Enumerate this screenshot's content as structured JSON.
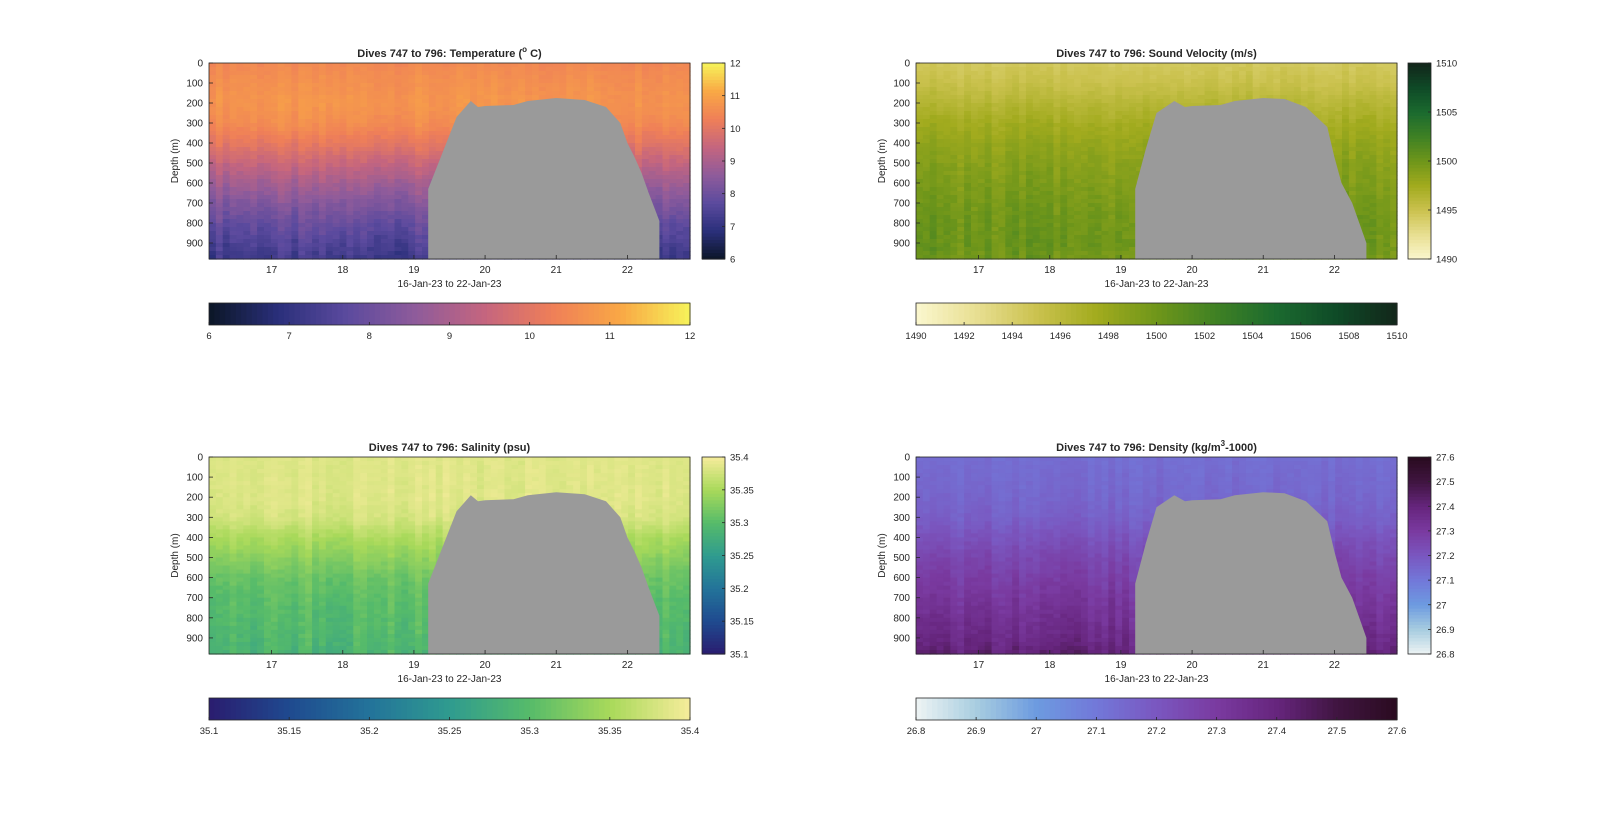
{
  "chart_data": [
    {
      "type": "heatmap",
      "title": "Dives 747 to 796: Temperature (° C)",
      "title_main": "Dives 747 to 796: Temperature (",
      "title_sup": "o",
      "title_tail": " C)",
      "xlabel": "16-Jan-23 to 22-Jan-23",
      "ylabel": "Depth (m)",
      "x_ticks": [
        "17",
        "18",
        "19",
        "20",
        "21",
        "22"
      ],
      "xlim": [
        16.12,
        22.88
      ],
      "y_ticks": [
        "0",
        "100",
        "200",
        "300",
        "400",
        "500",
        "600",
        "700",
        "800",
        "900"
      ],
      "ylim": [
        0,
        980
      ],
      "colorbar_range": [
        6,
        12
      ],
      "colorbar_ticks": [
        "6",
        "7",
        "8",
        "9",
        "10",
        "11",
        "12"
      ],
      "horizontal_colorbar_ticks": [
        "6",
        "7",
        "8",
        "9",
        "10",
        "11",
        "12"
      ],
      "colormap": [
        "#0b1626",
        "#2a2f7a",
        "#5b4a9e",
        "#8e5b9b",
        "#c4657f",
        "#ef7f58",
        "#f9a845",
        "#f6f35a"
      ],
      "profile": {
        "depths": [
          0,
          100,
          200,
          300,
          400,
          500,
          600,
          700,
          800,
          900,
          980
        ],
        "values": [
          10.5,
          10.65,
          10.75,
          10.6,
          10.1,
          9.5,
          8.9,
          8.4,
          7.9,
          7.5,
          7.2
        ]
      },
      "no_data_color": "#9a9a9a",
      "no_data_region": {
        "x": [
          19.2,
          19.2,
          19.6,
          19.8,
          19.9,
          20.0,
          20.4,
          20.6,
          21.0,
          21.4,
          21.7,
          21.9,
          22.0,
          22.1,
          22.2,
          22.3,
          22.45,
          22.45
        ],
        "depth": [
          980,
          630,
          270,
          190,
          220,
          215,
          210,
          190,
          175,
          185,
          220,
          300,
          400,
          470,
          550,
          650,
          790,
          980
        ]
      }
    },
    {
      "type": "heatmap",
      "title": "Dives 747 to 796: Sound Velocity (m/s)",
      "title_main": "Dives 747 to 796: Sound Velocity (m/s)",
      "title_sup": "",
      "title_tail": "",
      "xlabel": "16-Jan-23 to 22-Jan-23",
      "ylabel": "Depth (m)",
      "x_ticks": [
        "17",
        "18",
        "19",
        "20",
        "21",
        "22"
      ],
      "xlim": [
        16.12,
        22.88
      ],
      "y_ticks": [
        "0",
        "100",
        "200",
        "300",
        "400",
        "500",
        "600",
        "700",
        "800",
        "900"
      ],
      "ylim": [
        0,
        980
      ],
      "colorbar_range": [
        1490,
        1510
      ],
      "colorbar_ticks": [
        "1490",
        "1495",
        "1500",
        "1505",
        "1510"
      ],
      "horizontal_colorbar_ticks": [
        "1490",
        "1492",
        "1494",
        "1496",
        "1498",
        "1500",
        "1502",
        "1504",
        "1506",
        "1508",
        "1510"
      ],
      "colormap": [
        "#fbf7cf",
        "#e8df92",
        "#cbc24f",
        "#a2ab1e",
        "#6f961a",
        "#3f8124",
        "#1b6a2f",
        "#0f4a27",
        "#12261a"
      ],
      "profile": {
        "depths": [
          0,
          100,
          200,
          300,
          400,
          500,
          600,
          700,
          800,
          900,
          980
        ],
        "values": [
          1494.5,
          1495.2,
          1496.3,
          1497.4,
          1498.2,
          1498.8,
          1499.3,
          1499.7,
          1500.1,
          1500.2,
          1500.0
        ]
      },
      "no_data_color": "#9a9a9a",
      "no_data_region": {
        "x": [
          19.2,
          19.2,
          19.35,
          19.5,
          19.75,
          19.9,
          20.0,
          20.4,
          20.6,
          21.0,
          21.3,
          21.6,
          21.9,
          22.0,
          22.1,
          22.25,
          22.35,
          22.45,
          22.45
        ],
        "depth": [
          980,
          630,
          430,
          250,
          190,
          220,
          215,
          210,
          190,
          175,
          180,
          220,
          320,
          470,
          600,
          700,
          800,
          900,
          980
        ]
      }
    },
    {
      "type": "heatmap",
      "title": "Dives 747 to 796: Salinity (psu)",
      "title_main": "Dives 747 to 796: Salinity (psu)",
      "title_sup": "",
      "title_tail": "",
      "xlabel": "16-Jan-23 to 22-Jan-23",
      "ylabel": "Depth (m)",
      "x_ticks": [
        "17",
        "18",
        "19",
        "20",
        "21",
        "22"
      ],
      "xlim": [
        16.12,
        22.88
      ],
      "y_ticks": [
        "0",
        "100",
        "200",
        "300",
        "400",
        "500",
        "600",
        "700",
        "800",
        "900"
      ],
      "ylim": [
        0,
        980
      ],
      "colorbar_range": [
        35.1,
        35.4
      ],
      "colorbar_ticks": [
        "35.1",
        "35.15",
        "35.2",
        "35.25",
        "35.3",
        "35.35",
        "35.4"
      ],
      "horizontal_colorbar_ticks": [
        "35.1",
        "35.15",
        "35.2",
        "35.25",
        "35.3",
        "35.35",
        "35.4"
      ],
      "colormap": [
        "#2a1c6f",
        "#1f4a8f",
        "#23739a",
        "#2f9b8f",
        "#56bb6a",
        "#a8d95a",
        "#f6ec9b"
      ],
      "profile": {
        "depths": [
          0,
          100,
          200,
          300,
          400,
          500,
          600,
          700,
          800,
          900,
          980
        ],
        "values": [
          35.385,
          35.385,
          35.385,
          35.38,
          35.355,
          35.335,
          35.315,
          35.305,
          35.3,
          35.295,
          35.29
        ]
      },
      "no_data_color": "#9a9a9a",
      "no_data_region": {
        "x": [
          19.2,
          19.2,
          19.6,
          19.8,
          19.9,
          20.0,
          20.4,
          20.6,
          21.0,
          21.4,
          21.7,
          21.9,
          22.0,
          22.1,
          22.2,
          22.3,
          22.45,
          22.45
        ],
        "depth": [
          980,
          630,
          270,
          190,
          220,
          215,
          210,
          190,
          175,
          185,
          220,
          300,
          400,
          470,
          550,
          650,
          790,
          980
        ]
      }
    },
    {
      "type": "heatmap",
      "title": "Dives 747 to 796: Density (kg/m³-1000)",
      "title_main": "Dives 747 to 796: Density (kg/m",
      "title_sup": "3",
      "title_tail": "-1000)",
      "xlabel": "16-Jan-23 to 22-Jan-23",
      "ylabel": "Depth (m)",
      "x_ticks": [
        "17",
        "18",
        "19",
        "20",
        "21",
        "22"
      ],
      "xlim": [
        16.12,
        22.88
      ],
      "y_ticks": [
        "0",
        "100",
        "200",
        "300",
        "400",
        "500",
        "600",
        "700",
        "800",
        "900"
      ],
      "ylim": [
        0,
        980
      ],
      "colorbar_range": [
        26.8,
        27.6
      ],
      "colorbar_ticks": [
        "26.8",
        "26.9",
        "27",
        "27.1",
        "27.2",
        "27.3",
        "27.4",
        "27.5",
        "27.6"
      ],
      "horizontal_colorbar_ticks": [
        "26.8",
        "26.9",
        "27",
        "27.1",
        "27.2",
        "27.3",
        "27.4",
        "27.5",
        "27.6"
      ],
      "colormap": [
        "#eef4f4",
        "#a8cde0",
        "#6d9be0",
        "#7278d9",
        "#7a57c0",
        "#7a3aa0",
        "#66257d",
        "#401541",
        "#2a0b1f"
      ],
      "profile": {
        "depths": [
          0,
          100,
          200,
          300,
          400,
          500,
          600,
          700,
          800,
          900,
          980
        ],
        "values": [
          27.13,
          27.14,
          27.15,
          27.17,
          27.21,
          27.25,
          27.28,
          27.31,
          27.34,
          27.37,
          27.41
        ]
      },
      "no_data_color": "#9a9a9a",
      "no_data_region": {
        "x": [
          19.2,
          19.2,
          19.35,
          19.5,
          19.75,
          19.9,
          20.0,
          20.4,
          20.6,
          21.0,
          21.3,
          21.6,
          21.9,
          22.0,
          22.1,
          22.25,
          22.35,
          22.45,
          22.45
        ],
        "depth": [
          980,
          630,
          430,
          250,
          190,
          220,
          215,
          210,
          190,
          175,
          180,
          220,
          320,
          470,
          600,
          700,
          800,
          900,
          980
        ]
      }
    }
  ]
}
